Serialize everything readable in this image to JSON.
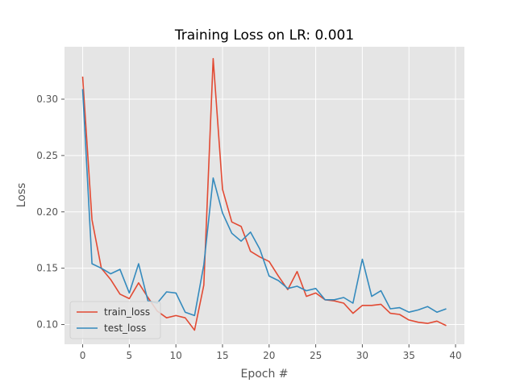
{
  "chart_data": {
    "type": "line",
    "title": "Training Loss on LR: 0.001",
    "xlabel": "Epoch #",
    "ylabel": "Loss",
    "xlim": [
      -1.95,
      40.95
    ],
    "ylim": [
      0.0825,
      0.3465
    ],
    "xticks": [
      0,
      5,
      10,
      15,
      20,
      25,
      30,
      35,
      40
    ],
    "yticks": [
      0.1,
      0.15,
      0.2,
      0.25,
      0.3
    ],
    "ytick_labels": [
      "0.10",
      "0.15",
      "0.20",
      "0.25",
      "0.30"
    ],
    "grid": true,
    "legend_position": "lower-left",
    "x": [
      0,
      1,
      2,
      3,
      4,
      5,
      6,
      7,
      8,
      9,
      10,
      11,
      12,
      13,
      14,
      15,
      16,
      17,
      18,
      19,
      20,
      21,
      22,
      23,
      24,
      25,
      26,
      27,
      28,
      29,
      30,
      31,
      32,
      33,
      34,
      35,
      36,
      37,
      38,
      39
    ],
    "series": [
      {
        "name": "train_loss",
        "color": "#E24A33",
        "values": [
          0.32,
          0.193,
          0.15,
          0.14,
          0.127,
          0.123,
          0.137,
          0.124,
          0.112,
          0.106,
          0.108,
          0.106,
          0.095,
          0.135,
          0.336,
          0.22,
          0.191,
          0.187,
          0.165,
          0.16,
          0.156,
          0.143,
          0.131,
          0.147,
          0.125,
          0.128,
          0.122,
          0.121,
          0.119,
          0.11,
          0.117,
          0.117,
          0.118,
          0.11,
          0.109,
          0.104,
          0.102,
          0.101,
          0.103,
          0.099
        ]
      },
      {
        "name": "test_loss",
        "color": "#348ABD",
        "values": [
          0.309,
          0.154,
          0.15,
          0.145,
          0.149,
          0.128,
          0.154,
          0.121,
          0.119,
          0.129,
          0.128,
          0.111,
          0.108,
          0.153,
          0.23,
          0.199,
          0.181,
          0.174,
          0.182,
          0.167,
          0.143,
          0.139,
          0.132,
          0.134,
          0.13,
          0.132,
          0.122,
          0.122,
          0.124,
          0.119,
          0.158,
          0.125,
          0.13,
          0.114,
          0.115,
          0.111,
          0.113,
          0.116,
          0.111,
          0.114
        ]
      }
    ]
  }
}
